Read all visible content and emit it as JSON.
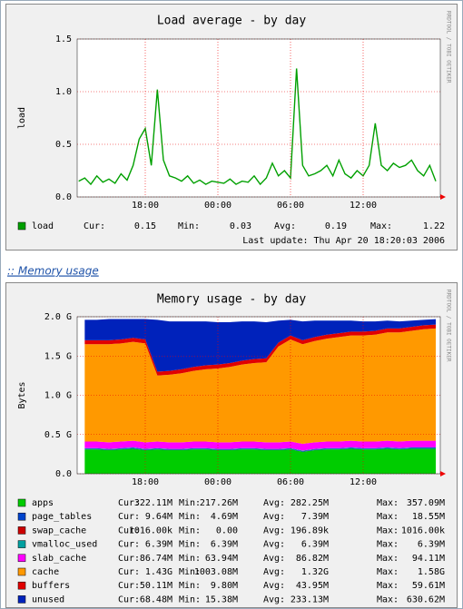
{
  "link": ":: Memory usage",
  "chart_data": [
    {
      "type": "line",
      "title": "Load average - by day",
      "y_label": "load",
      "watermark": "RRDTOOL / TOBI OETIKER",
      "categories": [
        null,
        null,
        null,
        null,
        null,
        null,
        null,
        null,
        null,
        null,
        null,
        "18:00",
        null,
        null,
        null,
        null,
        null,
        null,
        null,
        null,
        null,
        null,
        null,
        "00:00",
        null,
        null,
        null,
        null,
        null,
        null,
        null,
        null,
        null,
        null,
        null,
        "06:00",
        null,
        null,
        null,
        null,
        null,
        null,
        null,
        null,
        null,
        null,
        null,
        "12:00",
        null,
        null,
        null,
        null,
        null,
        null,
        null,
        null,
        null,
        null,
        null,
        null
      ],
      "series": [
        {
          "name": "load",
          "color": "#00a000",
          "values": [
            0.15,
            0.18,
            0.12,
            0.2,
            0.14,
            0.17,
            0.13,
            0.22,
            0.16,
            0.3,
            0.55,
            0.65,
            0.3,
            1.02,
            0.35,
            0.2,
            0.18,
            0.15,
            0.2,
            0.13,
            0.16,
            0.12,
            0.15,
            0.14,
            0.13,
            0.17,
            0.12,
            0.15,
            0.14,
            0.2,
            0.12,
            0.18,
            0.32,
            0.2,
            0.25,
            0.18,
            1.22,
            0.3,
            0.2,
            0.22,
            0.25,
            0.3,
            0.2,
            0.35,
            0.22,
            0.18,
            0.25,
            0.2,
            0.3,
            0.7,
            0.3,
            0.25,
            0.32,
            0.28,
            0.3,
            0.35,
            0.25,
            0.2,
            0.3,
            0.15
          ],
          "legend": [
            "0.15",
            "0.03",
            "0.19",
            "1.22"
          ]
        }
      ],
      "legend_labels": [
        "Cur:",
        "Min:",
        "Avg:",
        "Max:"
      ],
      "last_update": "Last update: Thu Apr 20 18:20:03 2006",
      "ylim": [
        0,
        1.5
      ],
      "yticks": [
        {
          "value": 0,
          "label": "0.0"
        },
        {
          "value": 0.5,
          "label": "0.5"
        },
        {
          "value": 1,
          "label": "1.0"
        },
        {
          "value": 1.5,
          "label": "1.5"
        }
      ],
      "grid": true
    },
    {
      "type": "area",
      "stacked": true,
      "title": "Memory usage - by day",
      "y_label": "Bytes",
      "watermark": "RRDTOOL / TOBI OETIKER",
      "categories": [
        null,
        null,
        null,
        null,
        null,
        "18:00",
        null,
        null,
        null,
        null,
        null,
        "00:00",
        null,
        null,
        null,
        null,
        null,
        "06:00",
        null,
        null,
        null,
        null,
        null,
        "12:00",
        null,
        null,
        null,
        null,
        null,
        null
      ],
      "series": [
        {
          "name": "apps",
          "color": "#00cc00",
          "values": [
            0.31,
            0.31,
            0.3,
            0.31,
            0.32,
            0.3,
            0.31,
            0.3,
            0.3,
            0.31,
            0.31,
            0.3,
            0.3,
            0.31,
            0.31,
            0.3,
            0.3,
            0.31,
            0.28,
            0.3,
            0.31,
            0.31,
            0.32,
            0.31,
            0.31,
            0.32,
            0.31,
            0.32,
            0.32,
            0.32
          ],
          "legend": [
            "322.11M",
            "217.26M",
            "282.25M",
            "357.09M"
          ]
        },
        {
          "name": "page_tables",
          "color": "#0044cc",
          "values": [
            0.009,
            0.009,
            0.009,
            0.009,
            0.009,
            0.009,
            0.009,
            0.009,
            0.009,
            0.009,
            0.009,
            0.009,
            0.009,
            0.009,
            0.009,
            0.009,
            0.009,
            0.009,
            0.009,
            0.009,
            0.009,
            0.009,
            0.009,
            0.009,
            0.009,
            0.009,
            0.009,
            0.009,
            0.009,
            0.009
          ],
          "legend": [
            "9.64M",
            "4.69M",
            "7.39M",
            "18.55M"
          ]
        },
        {
          "name": "swap_cache",
          "color": "#cc0000",
          "values": [
            0.001,
            0.001,
            0.001,
            0.001,
            0.001,
            0.001,
            0.001,
            0.001,
            0.001,
            0.001,
            0.001,
            0.001,
            0.001,
            0.001,
            0.001,
            0.001,
            0.001,
            0.001,
            0.001,
            0.001,
            0.001,
            0.001,
            0.001,
            0.001,
            0.001,
            0.001,
            0.001,
            0.001,
            0.001,
            0.001
          ],
          "legend": [
            "1016.00k",
            "0.00",
            "196.89k",
            "1016.00k"
          ]
        },
        {
          "name": "vmalloc_used",
          "color": "#00a0a0",
          "values": [
            0.006,
            0.006,
            0.006,
            0.006,
            0.006,
            0.006,
            0.006,
            0.006,
            0.006,
            0.006,
            0.006,
            0.006,
            0.006,
            0.006,
            0.006,
            0.006,
            0.006,
            0.006,
            0.006,
            0.006,
            0.006,
            0.006,
            0.006,
            0.006,
            0.006,
            0.006,
            0.006,
            0.006,
            0.006,
            0.006
          ],
          "legend": [
            "6.39M",
            "6.39M",
            "6.39M",
            "6.39M"
          ]
        },
        {
          "name": "slab_cache",
          "color": "#ff00ff",
          "values": [
            0.085,
            0.085,
            0.085,
            0.085,
            0.085,
            0.085,
            0.085,
            0.085,
            0.085,
            0.085,
            0.085,
            0.085,
            0.085,
            0.085,
            0.085,
            0.085,
            0.085,
            0.085,
            0.085,
            0.085,
            0.085,
            0.085,
            0.085,
            0.085,
            0.085,
            0.085,
            0.085,
            0.085,
            0.085,
            0.085
          ],
          "legend": [
            "86.74M",
            "63.94M",
            "86.82M",
            "94.11M"
          ]
        },
        {
          "name": "cache",
          "color": "#ff9900",
          "values": [
            1.24,
            1.24,
            1.25,
            1.25,
            1.26,
            1.26,
            0.84,
            0.86,
            0.88,
            0.9,
            0.92,
            0.94,
            0.96,
            0.98,
            1.0,
            1.02,
            1.22,
            1.3,
            1.27,
            1.29,
            1.31,
            1.33,
            1.34,
            1.35,
            1.36,
            1.38,
            1.39,
            1.4,
            1.42,
            1.43
          ],
          "legend": [
            "1.43G",
            "1003.08M",
            "1.32G",
            "1.58G"
          ]
        },
        {
          "name": "buffers",
          "color": "#e00000",
          "values": [
            0.05,
            0.05,
            0.05,
            0.05,
            0.05,
            0.05,
            0.05,
            0.05,
            0.05,
            0.05,
            0.05,
            0.05,
            0.05,
            0.05,
            0.05,
            0.05,
            0.05,
            0.05,
            0.05,
            0.05,
            0.05,
            0.05,
            0.05,
            0.05,
            0.05,
            0.05,
            0.05,
            0.05,
            0.05,
            0.05
          ],
          "legend": [
            "50.11M",
            "9.80M",
            "43.95M",
            "59.61M"
          ]
        },
        {
          "name": "unused",
          "color": "#0022bb",
          "values": [
            0.26,
            0.26,
            0.27,
            0.26,
            0.24,
            0.26,
            0.66,
            0.63,
            0.61,
            0.58,
            0.56,
            0.54,
            0.52,
            0.5,
            0.48,
            0.46,
            0.28,
            0.2,
            0.24,
            0.21,
            0.18,
            0.16,
            0.14,
            0.13,
            0.12,
            0.1,
            0.09,
            0.08,
            0.07,
            0.068
          ],
          "legend": [
            "68.48M",
            "15.38M",
            "233.13M",
            "630.62M"
          ]
        }
      ],
      "legend_labels": [
        "Cur:",
        "Min:",
        "Avg:",
        "Max:"
      ],
      "ylim": [
        0,
        2
      ],
      "yticks": [
        {
          "value": 0,
          "label": "0.0"
        },
        {
          "value": 0.5,
          "label": "0.5 G"
        },
        {
          "value": 1,
          "label": "1.0 G"
        },
        {
          "value": 1.5,
          "label": "1.5 G"
        },
        {
          "value": 2,
          "label": "2.0 G"
        }
      ],
      "grid": true
    }
  ]
}
